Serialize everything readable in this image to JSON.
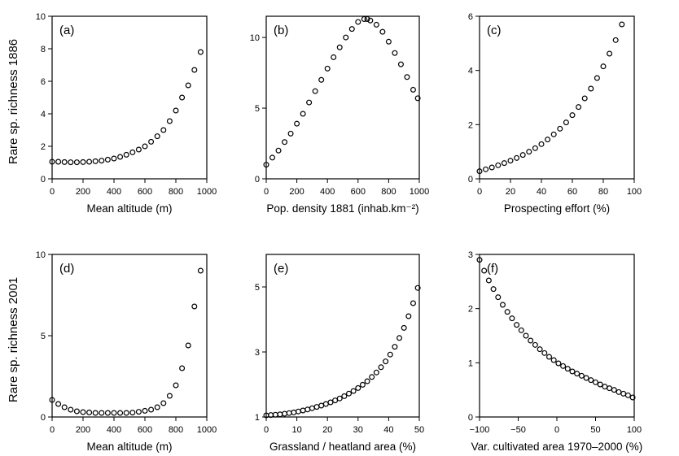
{
  "figure": {
    "row_labels": [
      "Rare  sp. richness 1886",
      "Rare  sp. richness 2001"
    ]
  },
  "chart_data": [
    {
      "type": "scatter",
      "panel": "(a)",
      "xlabel": "Mean altitude (m)",
      "ylabel": "Rare  sp. richness 1886",
      "xlim": [
        0,
        1000
      ],
      "ylim": [
        0,
        10
      ],
      "xticks": [
        0,
        200,
        400,
        600,
        800,
        1000
      ],
      "yticks": [
        0,
        2,
        4,
        6,
        8,
        10
      ],
      "x": [
        0,
        40,
        80,
        120,
        160,
        200,
        240,
        280,
        320,
        360,
        400,
        440,
        480,
        520,
        560,
        600,
        640,
        680,
        720,
        760,
        800,
        840,
        880,
        920,
        960
      ],
      "y": [
        1.05,
        1.05,
        1.03,
        1.02,
        1.02,
        1.03,
        1.05,
        1.08,
        1.12,
        1.18,
        1.25,
        1.35,
        1.48,
        1.63,
        1.8,
        2.0,
        2.28,
        2.62,
        3.0,
        3.55,
        4.2,
        5.0,
        5.75,
        6.7,
        7.8
      ],
      "grid": false,
      "legend": "none"
    },
    {
      "type": "scatter",
      "panel": "(b)",
      "xlabel": "Pop. density 1881 (inhab.km⁻²)",
      "ylabel": "",
      "xlim": [
        0,
        1000
      ],
      "ylim": [
        0,
        11.5
      ],
      "xticks": [
        0,
        200,
        400,
        600,
        800,
        1000
      ],
      "yticks": [
        0,
        5,
        10
      ],
      "x": [
        0,
        40,
        80,
        120,
        160,
        200,
        240,
        280,
        320,
        360,
        400,
        440,
        480,
        520,
        560,
        600,
        640,
        660,
        680,
        720,
        760,
        800,
        840,
        880,
        920,
        960,
        990
      ],
      "y": [
        1.0,
        1.5,
        2.0,
        2.6,
        3.2,
        3.9,
        4.6,
        5.4,
        6.2,
        7.0,
        7.8,
        8.6,
        9.3,
        10.0,
        10.6,
        11.1,
        11.3,
        11.3,
        11.2,
        10.9,
        10.4,
        9.7,
        8.9,
        8.1,
        7.2,
        6.3,
        5.7
      ],
      "grid": false,
      "legend": "none"
    },
    {
      "type": "scatter",
      "panel": "(c)",
      "xlabel": "Prospecting effort (%)",
      "ylabel": "",
      "xlim": [
        0,
        100
      ],
      "ylim": [
        0,
        6
      ],
      "xticks": [
        0,
        20,
        40,
        60,
        80,
        100
      ],
      "yticks": [
        0,
        2,
        4,
        6
      ],
      "x": [
        0,
        4,
        8,
        12,
        16,
        20,
        24,
        28,
        32,
        36,
        40,
        44,
        48,
        52,
        56,
        60,
        64,
        68,
        72,
        76,
        80,
        84,
        88,
        92
      ],
      "y": [
        0.28,
        0.35,
        0.42,
        0.5,
        0.58,
        0.67,
        0.77,
        0.88,
        1.0,
        1.13,
        1.28,
        1.45,
        1.64,
        1.85,
        2.08,
        2.35,
        2.65,
        2.97,
        3.33,
        3.72,
        4.15,
        4.62,
        5.12,
        5.7
      ],
      "grid": false,
      "legend": "none"
    },
    {
      "type": "scatter",
      "panel": "(d)",
      "xlabel": "Mean altitude (m)",
      "ylabel": "Rare  sp. richness 2001",
      "xlim": [
        0,
        1000
      ],
      "ylim": [
        0,
        10
      ],
      "xticks": [
        0,
        200,
        400,
        600,
        800,
        1000
      ],
      "yticks": [
        0,
        5,
        10
      ],
      "x": [
        0,
        40,
        80,
        120,
        160,
        200,
        240,
        280,
        320,
        360,
        400,
        440,
        480,
        520,
        560,
        600,
        640,
        680,
        720,
        760,
        800,
        840,
        880,
        920,
        960
      ],
      "y": [
        1.05,
        0.8,
        0.6,
        0.45,
        0.35,
        0.3,
        0.28,
        0.25,
        0.25,
        0.25,
        0.25,
        0.25,
        0.25,
        0.27,
        0.32,
        0.38,
        0.45,
        0.6,
        0.85,
        1.3,
        1.95,
        3.0,
        4.4,
        6.8,
        9.0
      ],
      "grid": false,
      "legend": "none"
    },
    {
      "type": "scatter",
      "panel": "(e)",
      "xlabel": "Grassland / heatland area (%)",
      "ylabel": "",
      "xlim": [
        0,
        50
      ],
      "ylim": [
        1,
        6
      ],
      "xticks": [
        0,
        10,
        20,
        30,
        40,
        50
      ],
      "yticks": [
        1,
        3,
        5
      ],
      "x": [
        0,
        1.5,
        3,
        4.5,
        6,
        7.5,
        9,
        10.5,
        12,
        13.5,
        15,
        16.5,
        18,
        19.5,
        21,
        22.5,
        24,
        25.5,
        27,
        28.5,
        30,
        31.5,
        33,
        34.5,
        36,
        37.5,
        39,
        40.5,
        42,
        43.5,
        45,
        46.5,
        48,
        49.5
      ],
      "y": [
        1.05,
        1.06,
        1.07,
        1.08,
        1.1,
        1.12,
        1.14,
        1.17,
        1.2,
        1.23,
        1.27,
        1.31,
        1.35,
        1.4,
        1.45,
        1.51,
        1.57,
        1.64,
        1.72,
        1.8,
        1.89,
        1.99,
        2.1,
        2.23,
        2.37,
        2.53,
        2.71,
        2.92,
        3.16,
        3.43,
        3.74,
        4.1,
        4.5,
        4.97
      ],
      "grid": false,
      "legend": "none"
    },
    {
      "type": "scatter",
      "panel": "(f)",
      "xlabel": "Var. cultivated area 1970–2000 (%)",
      "ylabel": "",
      "xlim": [
        -100,
        100
      ],
      "ylim": [
        0,
        3
      ],
      "xticks": [
        -100,
        -50,
        0,
        50,
        100
      ],
      "yticks": [
        0,
        1,
        2,
        3
      ],
      "x": [
        -100,
        -94,
        -88,
        -82,
        -76,
        -70,
        -64,
        -58,
        -52,
        -46,
        -40,
        -34,
        -28,
        -22,
        -16,
        -10,
        -4,
        2,
        8,
        14,
        20,
        26,
        32,
        38,
        44,
        50,
        56,
        62,
        68,
        74,
        80,
        86,
        92,
        98
      ],
      "y": [
        2.9,
        2.7,
        2.52,
        2.36,
        2.21,
        2.07,
        1.94,
        1.82,
        1.7,
        1.6,
        1.5,
        1.41,
        1.33,
        1.25,
        1.18,
        1.11,
        1.05,
        0.99,
        0.94,
        0.89,
        0.84,
        0.8,
        0.76,
        0.72,
        0.68,
        0.64,
        0.6,
        0.56,
        0.53,
        0.5,
        0.46,
        0.43,
        0.4,
        0.36
      ],
      "grid": false,
      "legend": "none"
    }
  ]
}
